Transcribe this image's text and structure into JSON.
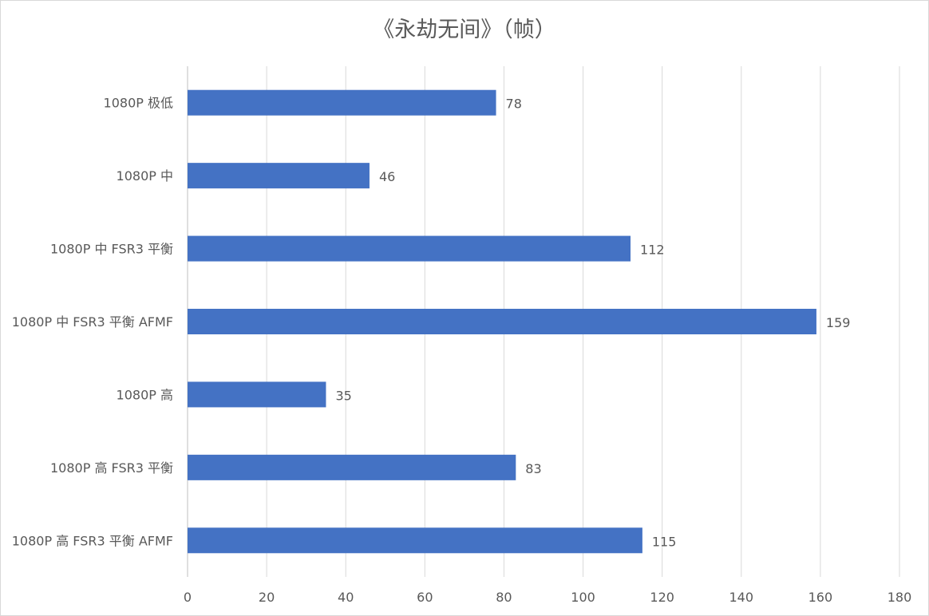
{
  "chart_data": {
    "type": "bar",
    "orientation": "horizontal",
    "title": "《永劫无间》（帧）",
    "xlabel": "",
    "ylabel": "",
    "categories": [
      "1080P 极低",
      "1080P 中",
      "1080P 中 FSR3 平衡",
      "1080P 中 FSR3 平衡 AFMF",
      "1080P 高",
      "1080P 高 FSR3 平衡",
      "1080P 高 FSR3 平衡 AFMF"
    ],
    "values": [
      78,
      46,
      112,
      159,
      35,
      83,
      115
    ],
    "xlim": [
      0,
      180
    ],
    "xticks": [
      0,
      20,
      40,
      60,
      80,
      100,
      120,
      140,
      160,
      180
    ],
    "grid": "vertical",
    "legend": "none",
    "bar_color": "#4472c4",
    "data_labels": true
  }
}
